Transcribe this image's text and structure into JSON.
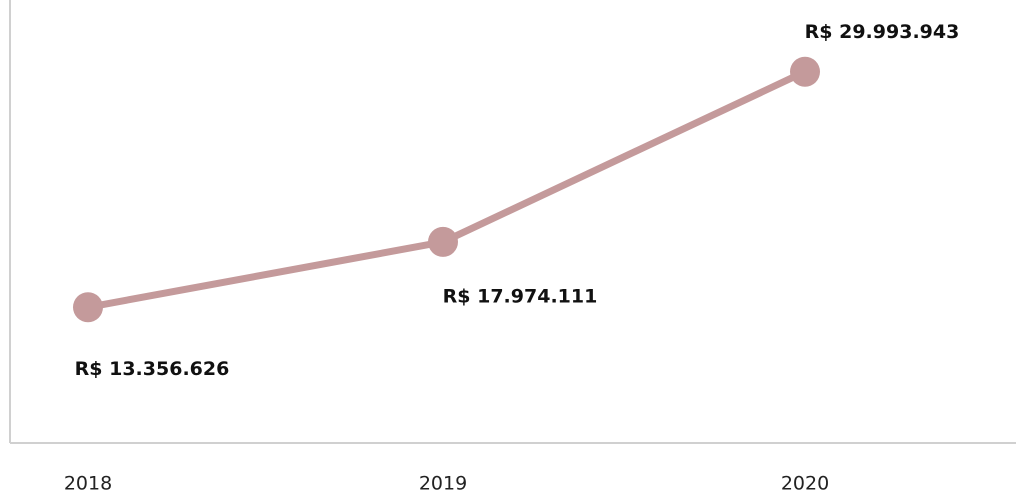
{
  "chart_data": {
    "type": "line",
    "categories": [
      "2018",
      "2019",
      "2020"
    ],
    "series": [
      {
        "color": "#c49a9b",
        "values": [
          13356626,
          17974111,
          29993943
        ],
        "value_labels": [
          "R$ 13.356.626",
          "R$ 17.974.111",
          "R$ 29.993.943"
        ]
      }
    ],
    "ylim": [
      3770000,
      34000000
    ]
  }
}
